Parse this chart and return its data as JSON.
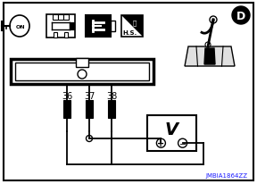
{
  "bg_color": "#ffffff",
  "border_color": "#000000",
  "title_code": "JMBIA1864ZZ",
  "wire_numbers": [
    "36",
    "37",
    "38"
  ],
  "hs_label": "H.S.",
  "gear_label": "D"
}
